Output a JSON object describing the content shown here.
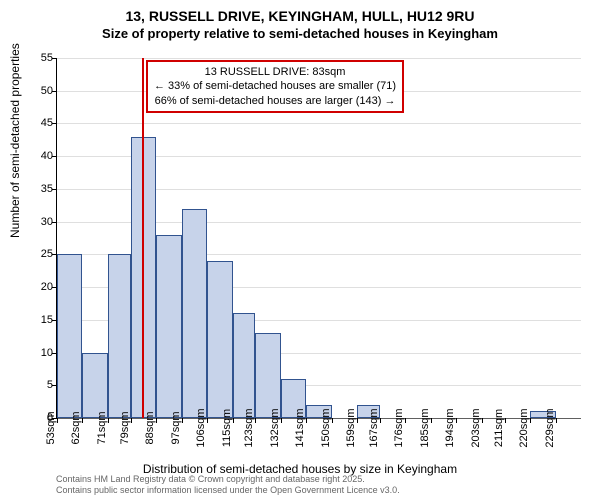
{
  "title_main": "13, RUSSELL DRIVE, KEYINGHAM, HULL, HU12 9RU",
  "title_sub": "Size of property relative to semi-detached houses in Keyingham",
  "y_axis_label": "Number of semi-detached properties",
  "x_axis_label": "Distribution of semi-detached houses by size in Keyingham",
  "attribution_line1": "Contains HM Land Registry data © Crown copyright and database right 2025.",
  "attribution_line2": "Contains public sector information licensed under the Open Government Licence v3.0.",
  "annotation": {
    "line1": "13 RUSSELL DRIVE: 83sqm",
    "line2": "← 33% of semi-detached houses are smaller (71)",
    "line3": "66% of semi-detached houses are larger (143) →"
  },
  "chart": {
    "type": "histogram",
    "y_max": 55,
    "y_ticks": [
      0,
      5,
      10,
      15,
      20,
      25,
      30,
      35,
      40,
      45,
      50,
      55
    ],
    "x_categories": [
      "53sqm",
      "62sqm",
      "71sqm",
      "79sqm",
      "88sqm",
      "97sqm",
      "106sqm",
      "115sqm",
      "123sqm",
      "132sqm",
      "141sqm",
      "150sqm",
      "159sqm",
      "167sqm",
      "176sqm",
      "185sqm",
      "194sqm",
      "203sqm",
      "211sqm",
      "220sqm",
      "229sqm"
    ],
    "x_bin_starts": [
      53,
      62,
      71,
      79,
      88,
      97,
      106,
      115,
      123,
      132,
      141,
      150,
      159,
      167,
      176,
      185,
      194,
      203,
      211,
      220,
      229
    ],
    "x_min": 53,
    "x_max": 238,
    "bar_values": [
      25,
      10,
      25,
      43,
      28,
      32,
      24,
      16,
      13,
      6,
      2,
      0,
      2,
      0,
      0,
      0,
      0,
      0,
      0,
      1,
      0
    ],
    "bar_fill": "#c7d3ea",
    "bar_stroke": "#31538f",
    "grid_color": "#c0c0c0",
    "ref_line_x": 83,
    "ref_line_color": "#d00000",
    "annotation_box_border": "#d00000",
    "title_fontsize": 14,
    "sub_fontsize": 13,
    "axis_label_fontsize": 12,
    "tick_fontsize": 11,
    "annotation_fontsize": 11,
    "attribution_fontsize": 9,
    "background_color": "#ffffff"
  }
}
